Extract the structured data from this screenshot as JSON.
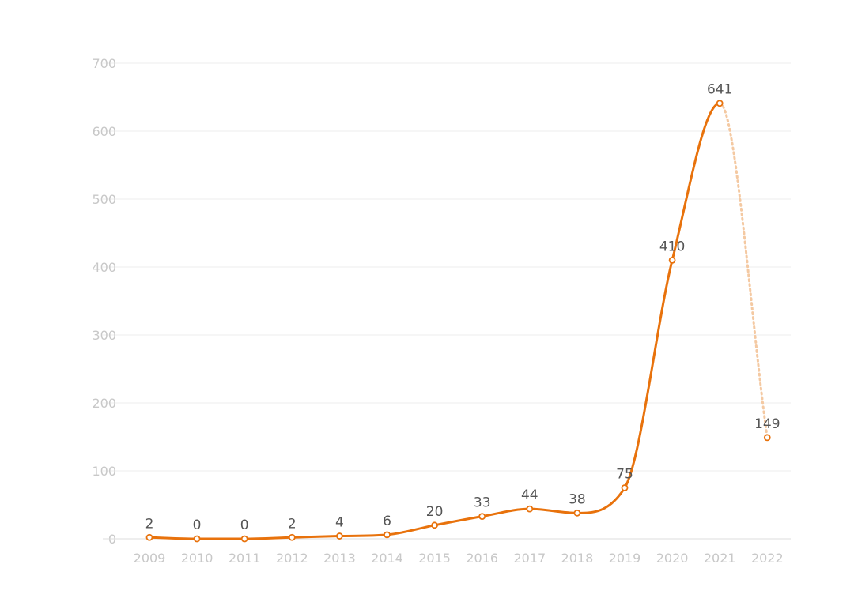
{
  "chart_data": {
    "type": "line",
    "title": "",
    "xlabel": "",
    "ylabel": "",
    "categories": [
      "2009",
      "2010",
      "2011",
      "2012",
      "2013",
      "2014",
      "2015",
      "2016",
      "2017",
      "2018",
      "2019",
      "2020",
      "2021",
      "2022"
    ],
    "values": [
      2,
      0,
      0,
      2,
      4,
      6,
      20,
      33,
      44,
      38,
      75,
      410,
      641,
      149
    ],
    "data_labels": [
      "2",
      "0",
      "0",
      "2",
      "4",
      "6",
      "20",
      "33",
      "44",
      "38",
      "75",
      "410",
      "641",
      "149"
    ],
    "ylim": [
      0,
      700
    ],
    "yticks": [
      0,
      100,
      200,
      300,
      400,
      500,
      600,
      700
    ],
    "ytick_labels": [
      "0",
      "100",
      "200",
      "300",
      "400",
      "500",
      "600",
      "700"
    ],
    "grid": true,
    "legend": "none",
    "line_style_note": "last segment (2021 to 2022) drawn dotted and faded",
    "colors": {
      "line": "#e8720c",
      "line_dotted": "#f4c9a2",
      "marker_fill": "#ffffff",
      "grid": "#eeeeee",
      "axis": "#dddddd",
      "tick_text": "#c8c8c8",
      "label_text": "#555555"
    }
  }
}
